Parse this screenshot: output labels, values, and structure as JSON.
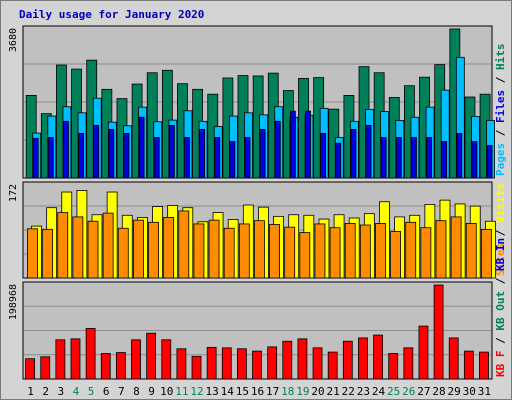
{
  "chart_data": {
    "title": "Daily usage for January 2020",
    "days": [
      "1",
      "2",
      "3",
      "4",
      "5",
      "6",
      "7",
      "8",
      "9",
      "10",
      "11",
      "12",
      "13",
      "14",
      "15",
      "16",
      "17",
      "18",
      "19",
      "20",
      "21",
      "22",
      "23",
      "24",
      "25",
      "26",
      "27",
      "28",
      "29",
      "30",
      "31"
    ],
    "weekend_days": [
      "4",
      "5",
      "11",
      "12",
      "18",
      "19",
      "25",
      "26"
    ],
    "colors": {
      "hits": "#00805a",
      "files": "#00bfff",
      "pages": "#0000e0",
      "visits": "#ffff00",
      "sites": "#ff8c00",
      "kbytes": "#ff0000",
      "weekend_label": "#00805a",
      "weekday_label": "#000000"
    },
    "panels": [
      {
        "type": "bar",
        "ymax_label": "3680",
        "ylim": [
          0,
          3680
        ],
        "legend": [
          {
            "name": "Pages",
            "color": "#00bfff"
          },
          {
            "name": "/",
            "color": "#000000"
          },
          {
            "name": "Files",
            "color": "#0000e0"
          },
          {
            "name": "/",
            "color": "#000000"
          },
          {
            "name": "Hits",
            "color": "#00805a"
          }
        ],
        "series": [
          {
            "name": "Hits",
            "values": [
              2040,
              1590,
              2790,
              2690,
              2910,
              2190,
              1960,
              2320,
              2600,
              2660,
              2330,
              2190,
              2070,
              2470,
              2530,
              2520,
              2590,
              2160,
              2460,
              2480,
              1700,
              2040,
              2750,
              2600,
              1990,
              2280,
              2490,
              2800,
              3680,
              2000,
              2070
            ]
          },
          {
            "name": "Files",
            "values": [
              1110,
              1530,
              1760,
              1610,
              1970,
              1380,
              1290,
              1750,
              1390,
              1430,
              1660,
              1400,
              1270,
              1530,
              1610,
              1560,
              1760,
              1500,
              1550,
              1720,
              1000,
              1400,
              1690,
              1640,
              1420,
              1500,
              1750,
              2170,
              2980,
              1520,
              1420
            ]
          },
          {
            "name": "Pages",
            "values": [
              980,
              1000,
              1400,
              1100,
              1300,
              1200,
              1100,
              1500,
              1000,
              1300,
              1000,
              1200,
              1000,
              900,
              1000,
              1200,
              1400,
              1650,
              1650,
              1100,
              860,
              1200,
              1300,
              1000,
              1000,
              1000,
              1000,
              900,
              1100,
              900,
              800
            ]
          }
        ]
      },
      {
        "type": "bar",
        "ymax_label": "172",
        "ylim": [
          0,
          172
        ],
        "legend": [
          {
            "name": "Sites",
            "color": "#ff8c00"
          },
          {
            "name": "/",
            "color": "#000000"
          },
          {
            "name": "Visits",
            "color": "#ffff00"
          }
        ],
        "series": [
          {
            "name": "Visits",
            "values": [
              96,
              130,
              159,
              162,
              117,
              159,
              116,
              112,
              132,
              134,
              130,
              104,
              121,
              108,
              135,
              131,
              114,
              117,
              116,
              109,
              117,
              111,
              119,
              141,
              113,
              116,
              136,
              144,
              137,
              133,
              105
            ]
          },
          {
            "name": "Sites",
            "values": [
              91,
              90,
              121,
              113,
              105,
              120,
              92,
              107,
              103,
              112,
              124,
              100,
              107,
              92,
              100,
              106,
              99,
              94,
              84,
              100,
              93,
              101,
              98,
              101,
              86,
              103,
              93,
              106,
              113,
              101,
              90
            ]
          }
        ]
      },
      {
        "type": "bar",
        "ymax_label": "198968",
        "ylim": [
          0,
          198968
        ],
        "legend": [
          {
            "name": "KB F",
            "color": "#ff0000"
          },
          {
            "name": "/",
            "color": "#000000"
          },
          {
            "name": "KB Out",
            "color": "#00805a"
          },
          {
            "name": "/",
            "color": "#000000"
          },
          {
            "name": "KB In",
            "color": "#0000e0"
          }
        ],
        "series": [
          {
            "name": "KB F",
            "values": [
              43000,
              47000,
              83000,
              85000,
              107000,
              54000,
              56000,
              83000,
              97000,
              83000,
              64000,
              48000,
              67000,
              66000,
              64000,
              59000,
              68000,
              80000,
              85000,
              66000,
              57000,
              80000,
              87000,
              93000,
              54000,
              66000,
              112000,
              198968,
              87000,
              59000,
              57000
            ]
          }
        ]
      }
    ]
  }
}
